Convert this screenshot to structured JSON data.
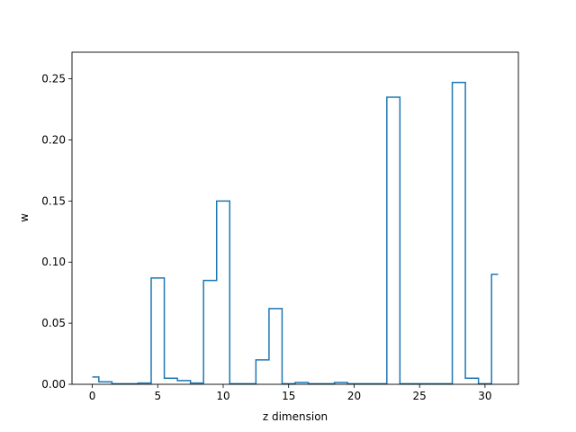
{
  "chart_data": {
    "type": "line",
    "style": "step",
    "xlabel": "z dimension",
    "ylabel": "w",
    "xlim": [
      -1.55,
      32.55
    ],
    "ylim": [
      0,
      0.2718
    ],
    "xticks": [
      0,
      5,
      10,
      15,
      20,
      25,
      30
    ],
    "yticks": [
      0.0,
      0.05,
      0.1,
      0.15,
      0.2,
      0.25
    ],
    "ytick_labels": [
      "0.00",
      "0.05",
      "0.10",
      "0.15",
      "0.20",
      "0.25"
    ],
    "grid": false,
    "series": [
      {
        "color": "#1f77b4",
        "x": [
          0,
          1,
          2,
          3,
          4,
          5,
          6,
          7,
          8,
          9,
          10,
          11,
          12,
          13,
          14,
          15,
          16,
          17,
          18,
          19,
          20,
          21,
          22,
          23,
          24,
          25,
          26,
          27,
          28,
          29,
          30,
          31
        ],
        "values": [
          0.006,
          0.002,
          0.0005,
          0.0005,
          0.001,
          0.087,
          0.005,
          0.003,
          0.001,
          0.085,
          0.15,
          0.0005,
          0.0005,
          0.02,
          0.062,
          0.0005,
          0.0015,
          0.0005,
          0.0005,
          0.0015,
          0.0005,
          0.0005,
          0.0005,
          0.235,
          0.0005,
          0.0005,
          0.0005,
          0.0005,
          0.247,
          0.005,
          0.0005,
          0.09
        ]
      }
    ]
  }
}
